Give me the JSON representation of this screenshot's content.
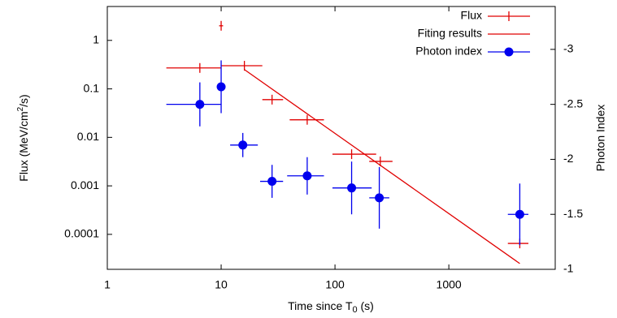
{
  "chart_data": {
    "type": "scatter",
    "x_label": [
      "Time since T",
      "0",
      " (s)"
    ],
    "y_label": [
      "Flux (MeV/cm",
      "2",
      "/s)"
    ],
    "y2_label": "Photon Index",
    "xlog": true,
    "ylog": true,
    "xlim": [
      1,
      8600
    ],
    "xticks": [
      1,
      10,
      100,
      1000
    ],
    "ylim": [
      1.9e-05,
      5
    ],
    "yticks": [
      0.0001,
      0.001,
      0.01,
      0.1,
      1
    ],
    "y2lim": [
      -1,
      -3.39
    ],
    "y2ticks": [
      -3,
      -2.5,
      -2,
      -1.5,
      -1
    ],
    "legend": "top-right",
    "series": [
      {
        "name": "Flux",
        "color": "#e00000",
        "marker": "cross",
        "x": [
          6.5,
          10,
          16,
          28,
          57,
          140,
          250,
          4200
        ],
        "x_lo": [
          3.3,
          9.6,
          10,
          23,
          40,
          95,
          200,
          3300
        ],
        "x_hi": [
          10,
          10.4,
          23,
          35,
          80,
          230,
          320,
          5000
        ],
        "values": [
          0.27,
          2.0,
          0.3,
          0.06,
          0.023,
          0.0045,
          0.0032,
          6.5e-05
        ]
      },
      {
        "name": "Fiting results",
        "color": "#e00000",
        "marker": "line",
        "x": [
          16,
          4200
        ],
        "values": [
          0.25,
          2.5e-05
        ]
      },
      {
        "name": "Photon index",
        "color": "#0000ee",
        "marker": "dot",
        "axis": "y2",
        "x": [
          6.5,
          10,
          15.5,
          28,
          57,
          140,
          245,
          4200
        ],
        "x_lo": [
          3.3,
          9.6,
          12,
          22,
          38,
          95,
          200,
          3300
        ],
        "x_hi": [
          10,
          10.4,
          21,
          35,
          80,
          210,
          300,
          5000
        ],
        "values": [
          -2.5,
          -2.66,
          -2.13,
          -1.8,
          -1.85,
          -1.74,
          -1.65,
          -1.5
        ],
        "y_err": [
          0.2,
          0.24,
          0.11,
          0.15,
          0.17,
          0.24,
          0.28,
          0.28
        ]
      }
    ]
  }
}
